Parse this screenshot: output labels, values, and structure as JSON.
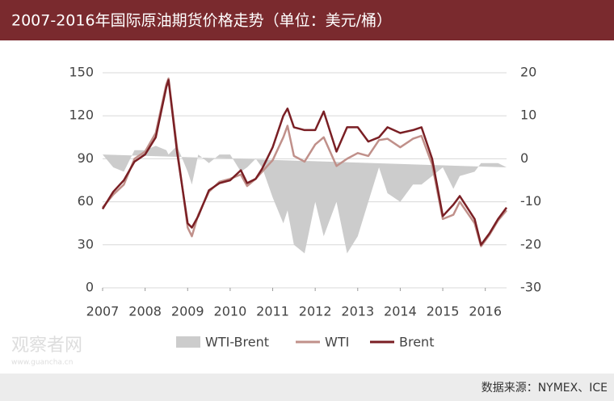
{
  "chart_data": {
    "type": "line",
    "title": "2007-2016年国际原油期货价格走势（单位：美元/桶）",
    "source": "数据来源：NYMEX、ICE",
    "watermark": "观察者网",
    "watermark_url": "www.guancha.cn",
    "x": [
      2007.0,
      2007.25,
      2007.5,
      2007.75,
      2008.0,
      2008.25,
      2008.5,
      2008.55,
      2008.75,
      2009.0,
      2009.1,
      2009.25,
      2009.5,
      2009.75,
      2010.0,
      2010.25,
      2010.4,
      2010.6,
      2010.75,
      2011.0,
      2011.25,
      2011.35,
      2011.5,
      2011.75,
      2012.0,
      2012.2,
      2012.5,
      2012.75,
      2013.0,
      2013.25,
      2013.5,
      2013.7,
      2014.0,
      2014.3,
      2014.5,
      2014.75,
      2015.0,
      2015.25,
      2015.4,
      2015.75,
      2015.9,
      2016.1,
      2016.3,
      2016.5
    ],
    "xlim": [
      2007,
      2016.5
    ],
    "xticks": [
      2007,
      2008,
      2009,
      2010,
      2011,
      2012,
      2013,
      2014,
      2015,
      2016
    ],
    "ylim": [
      0,
      150
    ],
    "yticks": [
      0,
      30,
      60,
      90,
      120,
      150
    ],
    "y2lim": [
      -30,
      20
    ],
    "y2ticks": [
      -30,
      -20,
      -10,
      0,
      10,
      20
    ],
    "grid": true,
    "series": [
      {
        "name": "WTI-Brent",
        "color": "#cccccc",
        "axis": "y2",
        "style": "area",
        "values": [
          1,
          -2,
          -3,
          2,
          2,
          3,
          2,
          1,
          3,
          -3,
          -6,
          1,
          -1,
          1,
          1,
          -3,
          -2,
          0,
          -2,
          -9,
          -15,
          -12,
          -20,
          -22,
          -10,
          -18,
          -10,
          -22,
          -18,
          -10,
          -2,
          -8,
          -10,
          -6,
          -6,
          -4,
          -2,
          -7,
          -4,
          -3,
          -1,
          -1,
          -1,
          -2
        ]
      },
      {
        "name": "WTI",
        "color": "#c0908a",
        "values": [
          56,
          65,
          72,
          90,
          95,
          108,
          142,
          146,
          98,
          42,
          36,
          51,
          67,
          74,
          76,
          79,
          71,
          76,
          81,
          89,
          105,
          113,
          92,
          88,
          100,
          105,
          85,
          90,
          94,
          92,
          103,
          104,
          98,
          104,
          106,
          86,
          48,
          51,
          60,
          45,
          29,
          37,
          47,
          54
        ]
      },
      {
        "name": "Brent",
        "color": "#7a1f24",
        "values": [
          55,
          67,
          75,
          88,
          93,
          105,
          140,
          145,
          95,
          45,
          42,
          50,
          68,
          73,
          75,
          82,
          73,
          76,
          83,
          98,
          120,
          125,
          112,
          110,
          110,
          123,
          95,
          112,
          112,
          102,
          105,
          112,
          108,
          110,
          112,
          90,
          50,
          58,
          64,
          48,
          30,
          38,
          48,
          56
        ]
      }
    ]
  }
}
